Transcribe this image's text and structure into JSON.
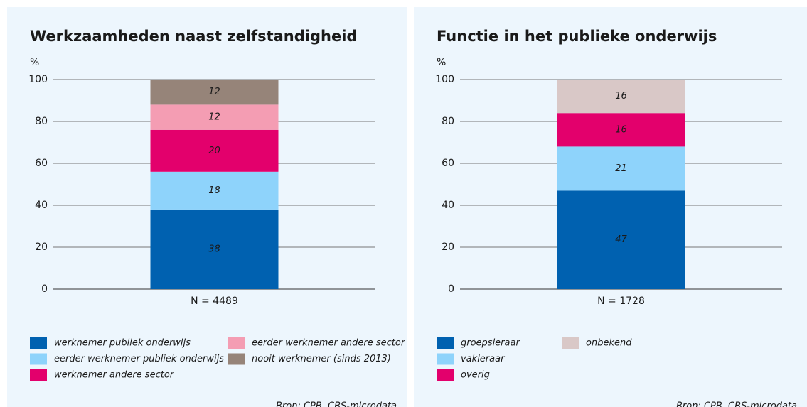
{
  "chart_data": [
    {
      "type": "stacked_bar",
      "title": "Werkzaamheden naast zelfstandigheid",
      "ylabel": "%",
      "categories": [
        "N = 4489"
      ],
      "ylim": [
        0,
        100
      ],
      "yticks": [
        0,
        20,
        40,
        60,
        80,
        100
      ],
      "grid": true,
      "series": [
        {
          "name": "werknemer publiek onderwijs",
          "color": "#0061b0",
          "values": [
            38
          ]
        },
        {
          "name": "eerder werknemer publiek onderwijs",
          "color": "#8ed3fb",
          "values": [
            18
          ]
        },
        {
          "name": "werknemer andere sector",
          "color": "#e3006c",
          "values": [
            20
          ]
        },
        {
          "name": "eerder werknemer andere sector",
          "color": "#f49db3",
          "values": [
            12
          ]
        },
        {
          "name": "nooit werknemer (sinds 2013)",
          "color": "#968479",
          "values": [
            12
          ]
        }
      ],
      "source": "Bron: CPB, CBS-microdata"
    },
    {
      "type": "stacked_bar",
      "title": "Functie in het publieke onderwijs",
      "ylabel": "%",
      "categories": [
        "N = 1728"
      ],
      "ylim": [
        0,
        100
      ],
      "yticks": [
        0,
        20,
        40,
        60,
        80,
        100
      ],
      "grid": true,
      "series": [
        {
          "name": "groepsleraar",
          "color": "#0061b0",
          "values": [
            47
          ]
        },
        {
          "name": "vakleraar",
          "color": "#8ed3fb",
          "values": [
            21
          ]
        },
        {
          "name": "overig",
          "color": "#e3006c",
          "values": [
            16
          ]
        },
        {
          "name": "onbekend",
          "color": "#d9c8c7",
          "values": [
            16
          ]
        }
      ],
      "source": "Bron: CPB, CBS-microdata"
    }
  ]
}
